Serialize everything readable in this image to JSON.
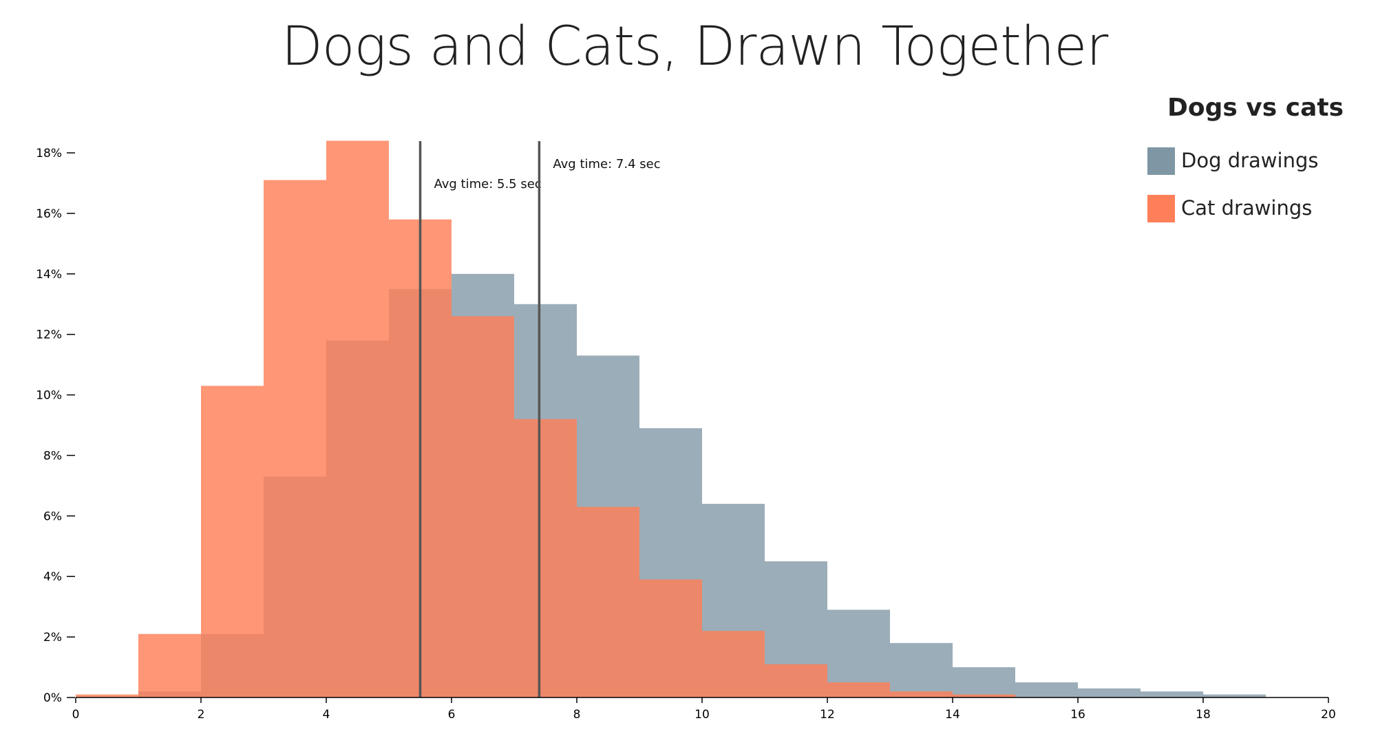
{
  "chart_data": {
    "type": "bar",
    "title": "Dogs and Cats, Drawn Together",
    "xlabel": "",
    "ylabel": "",
    "xlim": [
      0,
      20
    ],
    "ylim": [
      0,
      18.4
    ],
    "x_ticks": [
      0,
      2,
      4,
      6,
      8,
      10,
      12,
      14,
      16,
      18,
      20
    ],
    "y_ticks": [
      0,
      2,
      4,
      6,
      8,
      10,
      12,
      14,
      16,
      18
    ],
    "y_tick_labels": [
      "0%",
      "2%",
      "4%",
      "6%",
      "8%",
      "10%",
      "12%",
      "14%",
      "16%",
      "18%"
    ],
    "bin_width": 1,
    "legend": {
      "title": "Dogs vs cats",
      "placement": "top-right"
    },
    "series": [
      {
        "name": "Dog drawings",
        "color": "#7f96a4",
        "bin_starts": [
          0,
          1,
          2,
          3,
          4,
          5,
          6,
          7,
          8,
          9,
          10,
          11,
          12,
          13,
          14,
          15,
          16,
          17,
          18
        ],
        "values": [
          0.0,
          0.2,
          2.1,
          7.3,
          11.8,
          13.5,
          14.0,
          13.0,
          11.3,
          8.9,
          6.4,
          4.5,
          2.9,
          1.8,
          1.0,
          0.5,
          0.3,
          0.2,
          0.1
        ]
      },
      {
        "name": "Cat drawings",
        "color": "#ff7f58",
        "bin_starts": [
          0,
          1,
          2,
          3,
          4,
          5,
          6,
          7,
          8,
          9,
          10,
          11,
          12,
          13,
          14,
          15,
          16,
          17,
          18
        ],
        "values": [
          0.1,
          2.1,
          10.3,
          17.1,
          18.4,
          15.8,
          12.6,
          9.2,
          6.3,
          3.9,
          2.2,
          1.1,
          0.5,
          0.2,
          0.1,
          0.0,
          0.0,
          0.0,
          0.0
        ]
      }
    ],
    "annotations": [
      {
        "x": 5.5,
        "label": "Avg time: 5.5 sec"
      },
      {
        "x": 7.4,
        "label": "Avg time: 7.4 sec"
      }
    ]
  }
}
